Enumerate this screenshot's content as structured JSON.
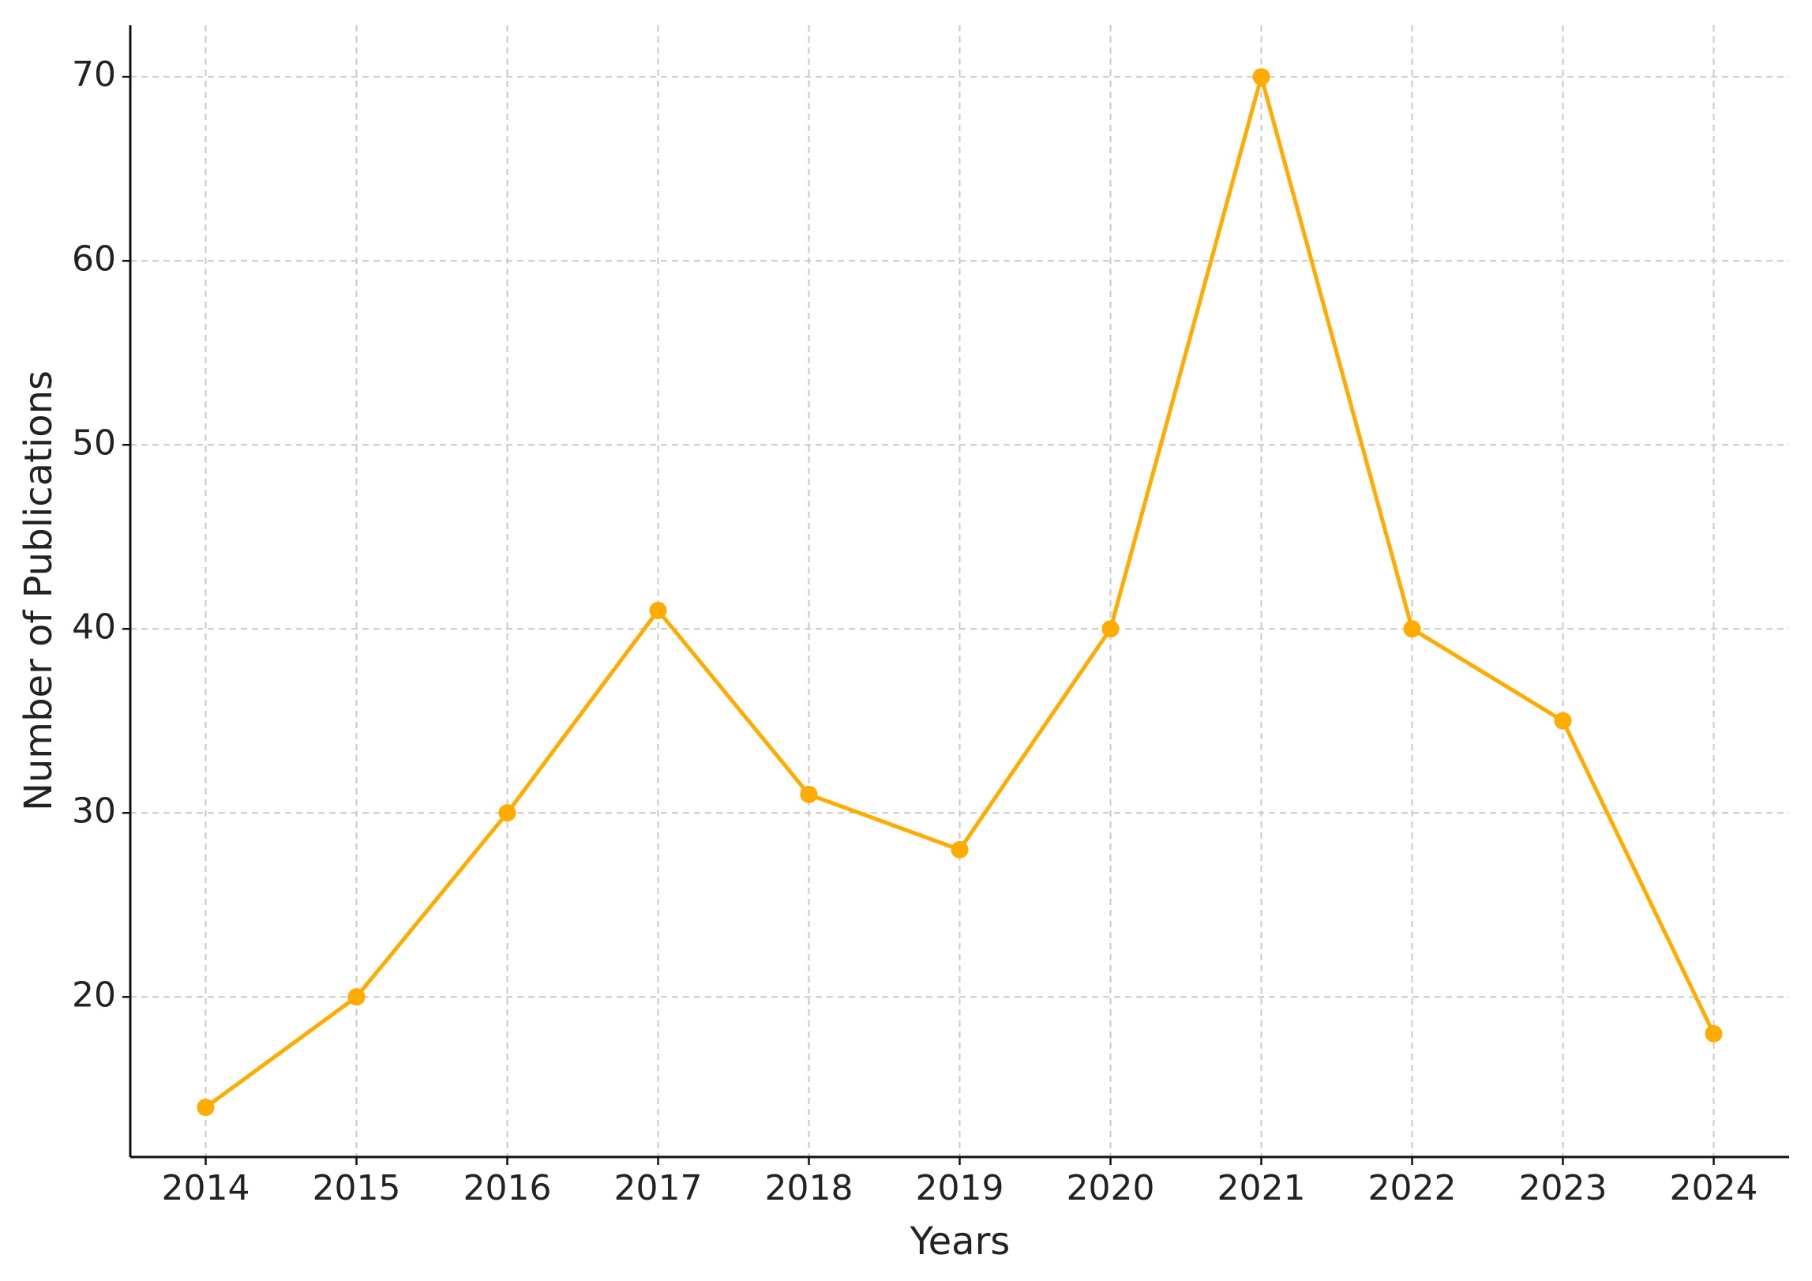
{
  "chart_data": {
    "type": "line",
    "xlabel": "Years",
    "ylabel": "Number of Publications",
    "x": [
      2014,
      2015,
      2016,
      2017,
      2018,
      2019,
      2020,
      2021,
      2022,
      2023,
      2024
    ],
    "values": [
      14,
      20,
      30,
      41,
      31,
      28,
      40,
      70,
      40,
      35,
      18
    ],
    "color": "#ffab00",
    "xlim": [
      2013.5,
      2024.5
    ],
    "xticks": [
      2014,
      2015,
      2016,
      2017,
      2018,
      2019,
      2020,
      2021,
      2022,
      2023,
      2024
    ],
    "ylim": [
      11.3,
      72.8
    ],
    "yticks": [
      20,
      30,
      40,
      50,
      60,
      70
    ],
    "grid": true
  }
}
